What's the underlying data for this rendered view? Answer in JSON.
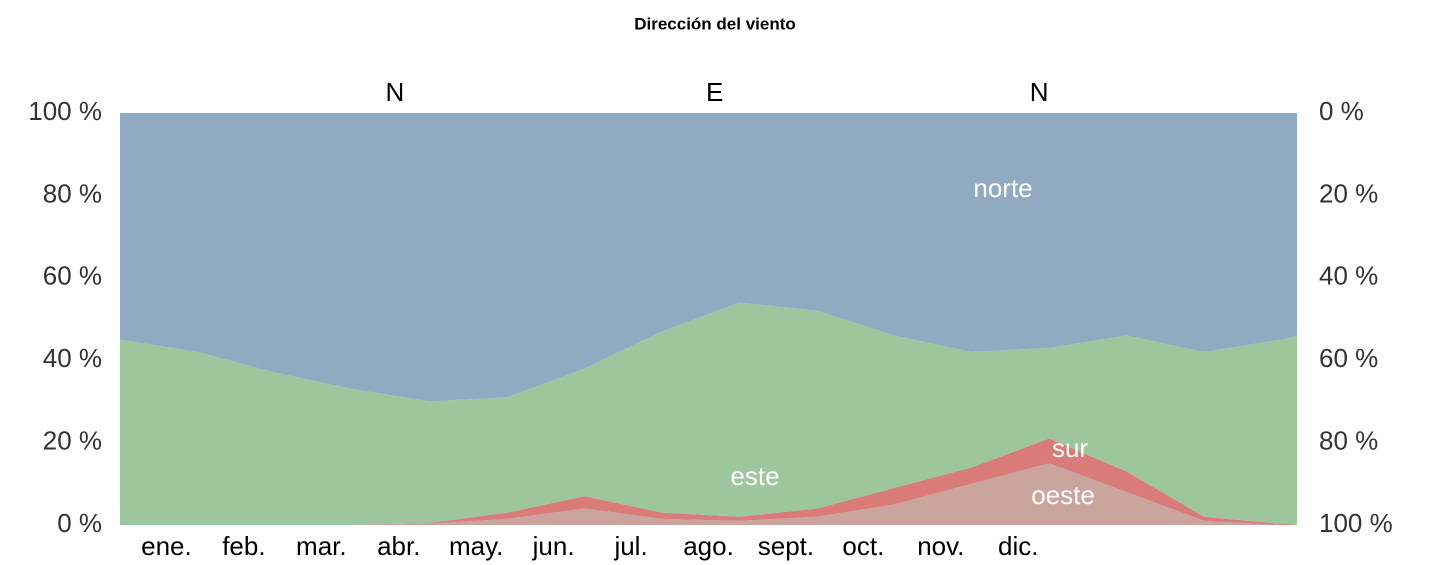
{
  "chart_data": {
    "type": "stacked_area",
    "title": "Dirección del viento",
    "x": [
      0,
      1,
      2,
      3,
      4,
      5,
      6,
      7,
      8,
      9,
      10,
      11,
      12,
      13,
      14,
      15,
      15.2
    ],
    "xlim": [
      0,
      15.2
    ],
    "xticks": [
      {
        "value": 0.6,
        "label": "ene."
      },
      {
        "value": 1.6,
        "label": "feb."
      },
      {
        "value": 2.6,
        "label": "mar."
      },
      {
        "value": 3.6,
        "label": "abr."
      },
      {
        "value": 4.6,
        "label": "may."
      },
      {
        "value": 5.6,
        "label": "jun."
      },
      {
        "value": 6.6,
        "label": "jul."
      },
      {
        "value": 7.6,
        "label": "ago."
      },
      {
        "value": 8.6,
        "label": "sept."
      },
      {
        "value": 9.6,
        "label": "oct."
      },
      {
        "value": 10.6,
        "label": "nov."
      },
      {
        "value": 11.6,
        "label": "dic."
      }
    ],
    "ylim": [
      0,
      100
    ],
    "yticks": [
      {
        "value": 0,
        "label": "0 %"
      },
      {
        "value": 20,
        "label": "20 %"
      },
      {
        "value": 40,
        "label": "40 %"
      },
      {
        "value": 60,
        "label": "60 %"
      },
      {
        "value": 80,
        "label": "80 %"
      },
      {
        "value": 100,
        "label": "100 %"
      }
    ],
    "y2lim": [
      100,
      0
    ],
    "y2ticks": [
      {
        "value": 0,
        "label": "0 %"
      },
      {
        "value": 20,
        "label": "20 %"
      },
      {
        "value": 40,
        "label": "40 %"
      },
      {
        "value": 60,
        "label": "60 %"
      },
      {
        "value": 80,
        "label": "80 %"
      },
      {
        "value": 100,
        "label": "100 %"
      }
    ],
    "series": [
      {
        "name": "oeste",
        "color": "#c9a59d",
        "values": [
          0,
          0,
          0,
          0,
          0.3,
          1.5,
          4,
          1.5,
          1,
          2,
          5,
          10,
          15,
          8,
          1,
          0,
          0
        ]
      },
      {
        "name": "sur",
        "color": "#d97b79",
        "values": [
          0,
          0,
          0,
          0,
          0.2,
          1.5,
          3,
          1.5,
          1,
          2,
          4,
          4,
          6,
          5,
          1,
          0.3,
          0
        ]
      },
      {
        "name": "este",
        "color": "#9dc69d",
        "values": [
          45,
          42,
          37,
          33,
          29.5,
          28,
          31,
          44,
          52,
          48,
          37,
          28,
          22,
          33,
          40,
          44.7,
          46
        ]
      },
      {
        "name": "norte",
        "color": "#90aac1",
        "values": [
          55,
          58,
          63,
          67,
          70,
          69,
          62,
          53,
          46,
          48,
          54,
          58,
          57,
          54,
          58,
          55,
          54
        ]
      }
    ],
    "annotations": [
      {
        "text": "N",
        "x": 3.55
      },
      {
        "text": "E",
        "x": 7.68
      },
      {
        "text": "N",
        "x": 11.87
      }
    ]
  }
}
